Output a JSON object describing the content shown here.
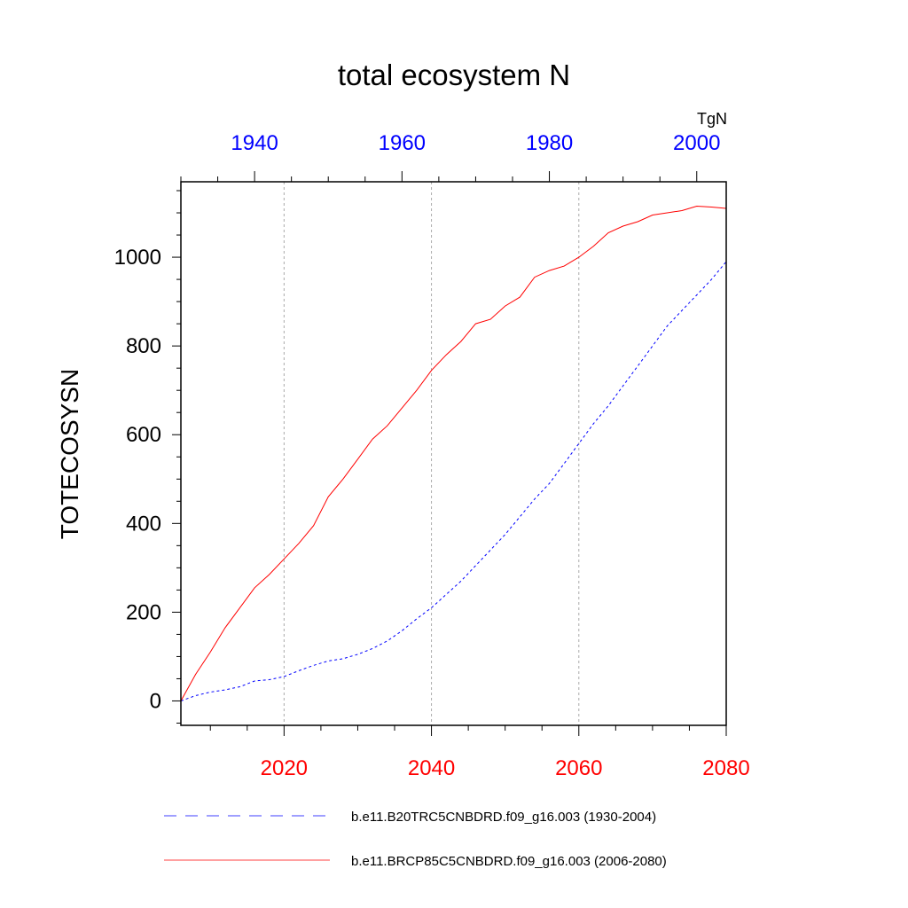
{
  "chart_data": {
    "type": "line",
    "title": "total ecosystem N",
    "ylabel": "TOTECOSYSN",
    "units": "TgN",
    "ylim": [
      -55,
      1170
    ],
    "yticks": [
      0,
      200,
      400,
      600,
      800,
      1000
    ],
    "grid": "vertical dotted at major bottom ticks",
    "legend_position": "bottom",
    "x_bottom": {
      "range": [
        2006,
        2080
      ],
      "ticks": [
        2020,
        2040,
        2060,
        2080
      ],
      "color": "#ff0000"
    },
    "x_top": {
      "range": [
        1930,
        2004
      ],
      "ticks": [
        1940,
        1960,
        1980,
        2000
      ],
      "color": "#0000ff"
    },
    "series": [
      {
        "name": "b.e11.B20TRC5CNBDRD.f09_g16.003 (1930-2004)",
        "axis": "top",
        "color": "#0000ff",
        "style": "dashed",
        "x": [
          1930,
          1932,
          1934,
          1936,
          1938,
          1940,
          1942,
          1944,
          1946,
          1948,
          1950,
          1952,
          1954,
          1956,
          1958,
          1960,
          1962,
          1964,
          1966,
          1968,
          1970,
          1972,
          1974,
          1976,
          1978,
          1980,
          1982,
          1984,
          1986,
          1988,
          1990,
          1992,
          1994,
          1996,
          1998,
          2000,
          2002,
          2004
        ],
        "y": [
          0,
          12,
          20,
          25,
          32,
          45,
          48,
          55,
          68,
          80,
          90,
          95,
          105,
          118,
          135,
          158,
          185,
          210,
          240,
          270,
          305,
          340,
          375,
          415,
          455,
          490,
          535,
          580,
          625,
          665,
          710,
          755,
          800,
          845,
          880,
          915,
          950,
          990
        ]
      },
      {
        "name": "b.e11.BRCP85C5CNBDRD.f09_g16.003 (2006-2080)",
        "axis": "bottom",
        "color": "#ff0000",
        "style": "solid",
        "x": [
          2006,
          2008,
          2010,
          2012,
          2014,
          2016,
          2018,
          2020,
          2022,
          2024,
          2026,
          2028,
          2030,
          2032,
          2034,
          2036,
          2038,
          2040,
          2042,
          2044,
          2046,
          2048,
          2050,
          2052,
          2054,
          2056,
          2058,
          2060,
          2062,
          2064,
          2066,
          2068,
          2070,
          2072,
          2074,
          2076,
          2078,
          2080
        ],
        "y": [
          0,
          60,
          110,
          165,
          210,
          255,
          285,
          320,
          355,
          395,
          460,
          500,
          545,
          590,
          620,
          660,
          700,
          745,
          780,
          810,
          850,
          860,
          890,
          910,
          955,
          970,
          980,
          1000,
          1025,
          1055,
          1070,
          1080,
          1095,
          1100,
          1105,
          1115,
          1113,
          1110
        ]
      }
    ]
  }
}
